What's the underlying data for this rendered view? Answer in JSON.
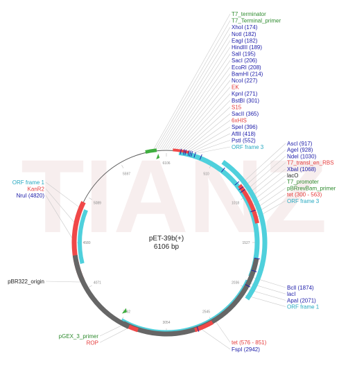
{
  "map": {
    "name": "pET-39b(+)",
    "size_label": "6106 bp",
    "watermark": "TIANZ",
    "colors": {
      "enzyme": "#1a1aa8",
      "red_feature": "#e53a3a",
      "green_feature": "#2e8b2e",
      "orf": "#25a8c0",
      "origin": "#444444",
      "backbone": "#555555",
      "orf_arc": "#4fd0dc",
      "red_arc": "#f04848",
      "green_arc": "#3fae3f",
      "grey_arc": "#666666"
    },
    "ticks": [
      "6106",
      "510",
      "1018",
      "1527",
      "2036",
      "2545",
      "3054",
      "3562",
      "4071",
      "4580",
      "5089",
      "5597"
    ],
    "labels_top_right": [
      {
        "text": "T7_terminator",
        "kind": "green"
      },
      {
        "text": "T7_Terminal_primer",
        "kind": "green"
      },
      {
        "text": "XhoI (174)",
        "kind": "enzyme"
      },
      {
        "text": "NotI (182)",
        "kind": "enzyme"
      },
      {
        "text": "EagI (182)",
        "kind": "enzyme"
      },
      {
        "text": "HindIII (189)",
        "kind": "enzyme"
      },
      {
        "text": "SalI (195)",
        "kind": "enzyme"
      },
      {
        "text": "SacI (206)",
        "kind": "enzyme"
      },
      {
        "text": "EcoRI (208)",
        "kind": "enzyme"
      },
      {
        "text": "BamHI (214)",
        "kind": "enzyme"
      },
      {
        "text": "NcoI (227)",
        "kind": "enzyme"
      },
      {
        "text": "EK",
        "kind": "red"
      },
      {
        "text": "KpnI (271)",
        "kind": "enzyme"
      },
      {
        "text": "BstBI (301)",
        "kind": "enzyme"
      },
      {
        "text": "S15",
        "kind": "red"
      },
      {
        "text": "SacII (365)",
        "kind": "enzyme"
      },
      {
        "text": "6xHIS",
        "kind": "red"
      },
      {
        "text": "SpeI (396)",
        "kind": "enzyme"
      },
      {
        "text": "AflII (418)",
        "kind": "enzyme"
      },
      {
        "text": "PstI (552)",
        "kind": "enzyme"
      },
      {
        "text": "ORF frame 3",
        "kind": "orf"
      }
    ],
    "labels_mid_right": [
      {
        "text": "AscI (917)",
        "kind": "enzyme"
      },
      {
        "text": "AgeI (928)",
        "kind": "enzyme"
      },
      {
        "text": "NdeI (1030)",
        "kind": "enzyme"
      },
      {
        "text": "T7_transl_en_RBS",
        "kind": "red"
      },
      {
        "text": "XbaI (1068)",
        "kind": "enzyme"
      },
      {
        "text": "lacO",
        "kind": "black"
      },
      {
        "text": "T7_promoter",
        "kind": "green"
      },
      {
        "text": "pBRrevBam_primer",
        "kind": "green"
      },
      {
        "text": "tet (300 - 563)",
        "kind": "red"
      },
      {
        "text": "ORF frame 3",
        "kind": "orf"
      }
    ],
    "labels_low_right": [
      {
        "text": "BclI (1874)",
        "kind": "enzyme"
      },
      {
        "text": "lacI",
        "kind": "enzyme"
      },
      {
        "text": "ApaI (2071)",
        "kind": "enzyme"
      },
      {
        "text": "ORF frame 1",
        "kind": "orf"
      }
    ],
    "labels_bottom_right": [
      {
        "text": "tet (576 - 851)",
        "kind": "red"
      },
      {
        "text": "FspI (2942)",
        "kind": "enzyme"
      }
    ],
    "labels_left": [
      {
        "text": "ORF frame 1",
        "kind": "orf"
      },
      {
        "text": "KanR2",
        "kind": "red"
      },
      {
        "text": "NruI (4820)",
        "kind": "enzyme"
      }
    ],
    "label_origin": {
      "text": "pBR322_origin",
      "kind": "black"
    },
    "labels_bottom_left": [
      {
        "text": "pGEX_3_primer",
        "kind": "green"
      },
      {
        "text": "ROP",
        "kind": "red"
      }
    ]
  }
}
